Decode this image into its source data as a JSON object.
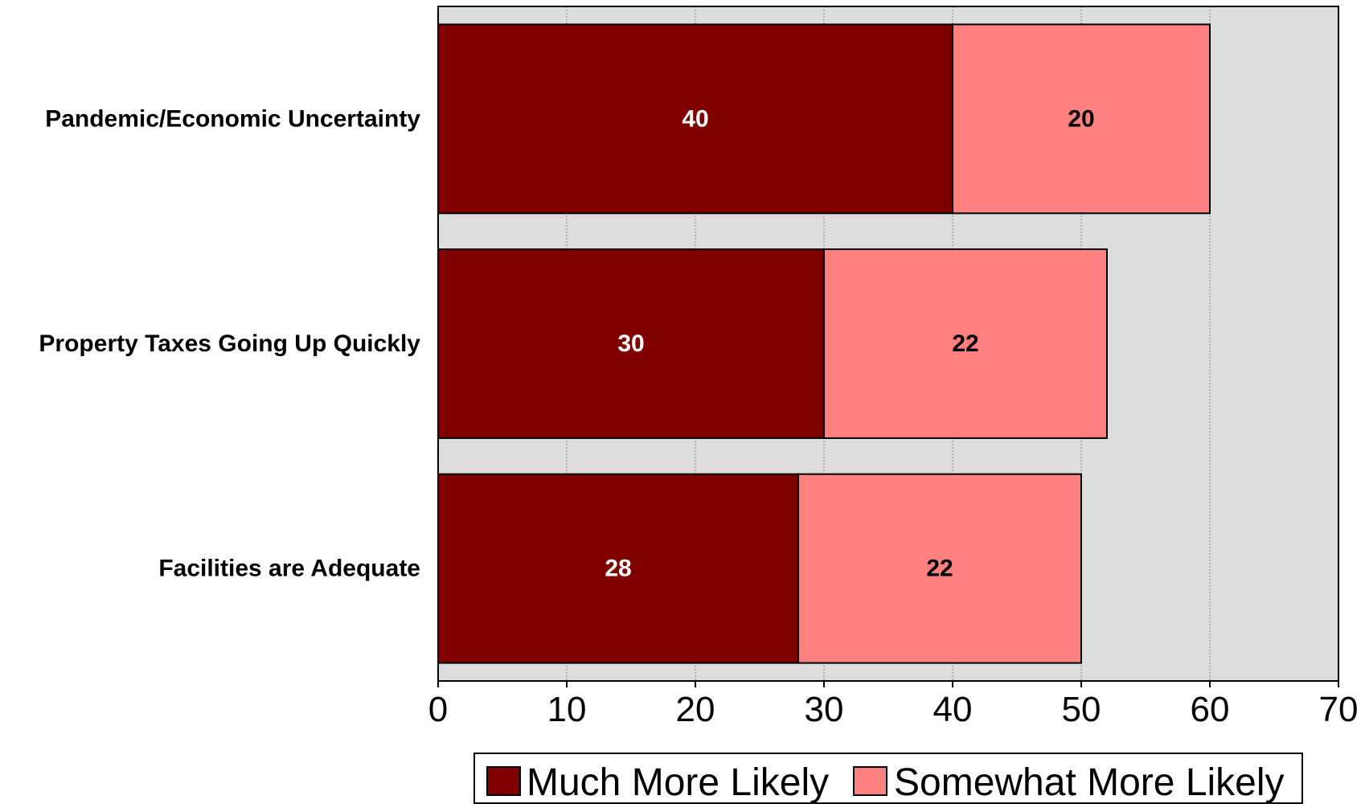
{
  "chart_data": {
    "type": "bar",
    "orientation": "horizontal",
    "stacked": true,
    "categories": [
      "Pandemic/Economic Uncertainty",
      "Property Taxes Going Up Quickly",
      "Facilities are Adequate"
    ],
    "series": [
      {
        "name": "Much More Likely",
        "values": [
          40,
          30,
          28
        ],
        "color": "#800000",
        "label_color": "#ffffff"
      },
      {
        "name": "Somewhat More Likely",
        "values": [
          20,
          22,
          22
        ],
        "color": "#ff8080",
        "label_color": "#000000"
      }
    ],
    "xlim": [
      0,
      70
    ],
    "xticks": [
      0,
      10,
      20,
      30,
      40,
      50,
      60,
      70
    ],
    "title": "",
    "xlabel": "",
    "ylabel": "",
    "grid": true,
    "plot_background": "#dddddd",
    "legend_position": "bottom"
  }
}
